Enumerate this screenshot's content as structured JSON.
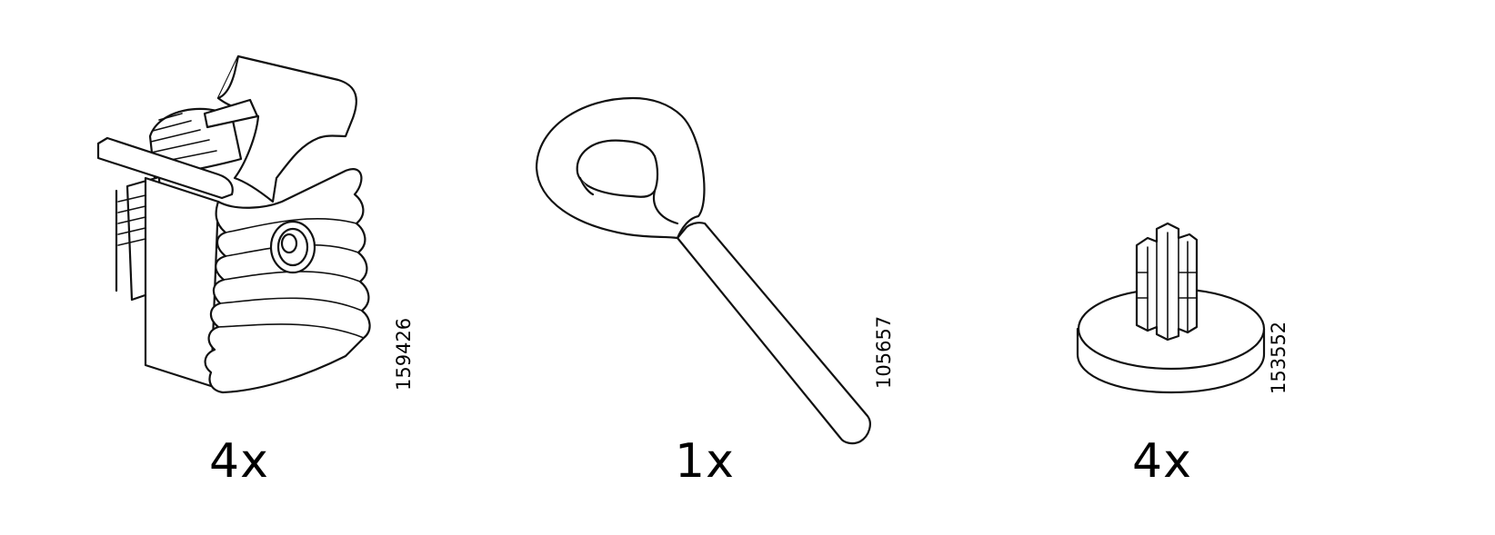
{
  "parts": [
    {
      "quantity": "4x",
      "article_number": "159426",
      "icon": "cable-clip-bracket-icon"
    },
    {
      "quantity": "1x",
      "article_number": "105657",
      "icon": "eye-screw-icon"
    },
    {
      "quantity": "4x",
      "article_number": "153552",
      "icon": "cross-pin-foot-icon"
    }
  ]
}
